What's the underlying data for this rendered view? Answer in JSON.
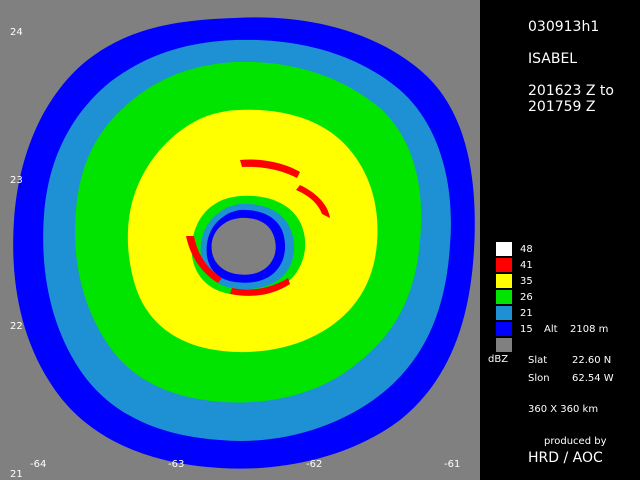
{
  "header": {
    "flight_id": "030913h1",
    "storm_name": "ISABEL",
    "time_start": "201623 Z to",
    "time_end": "201759 Z"
  },
  "legend": {
    "levels": [
      {
        "value": "48",
        "color": "#ffffff"
      },
      {
        "value": "41",
        "color": "#ff0000"
      },
      {
        "value": "35",
        "color": "#ffff00"
      },
      {
        "value": "26",
        "color": "#00e400"
      },
      {
        "value": "21",
        "color": "#1e90d4"
      },
      {
        "value": "15",
        "color": "#0000ff"
      }
    ],
    "below_color": "#808080",
    "alt_label": "Alt",
    "alt_value": "2108 m",
    "unit": "dBZ"
  },
  "center": {
    "slat_label": "Slat",
    "slat_value": "22.60 N",
    "slon_label": "Slon",
    "slon_value": "62.54 W"
  },
  "domain_size": "360 X 360 km",
  "credits": {
    "produced_by": "produced by",
    "org": "HRD / AOC"
  },
  "axes": {
    "lat_ticks": [
      "24",
      "23",
      "22",
      "21"
    ],
    "lon_ticks": [
      "-64",
      "-63",
      "-62",
      "-61"
    ]
  }
}
